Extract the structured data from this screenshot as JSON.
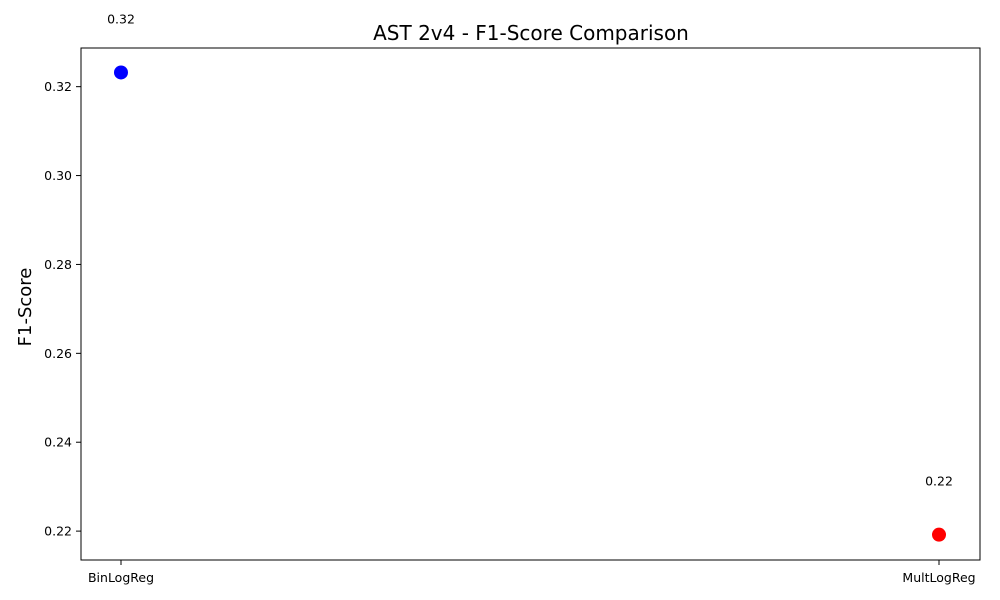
{
  "chart_data": {
    "type": "scatter",
    "title": "AST 2v4 - F1-Score Comparison",
    "xlabel": "",
    "ylabel": "F1-Score",
    "categories": [
      "BinLogReg",
      "MultLogReg"
    ],
    "points": [
      {
        "category": "BinLogReg",
        "value": 0.3232,
        "label": "0.32",
        "color": "#0000ff"
      },
      {
        "category": "MultLogReg",
        "value": 0.2192,
        "label": "0.22",
        "color": "#ff0000"
      }
    ],
    "yticks": [
      {
        "value": 0.22,
        "label": "0.22"
      },
      {
        "value": 0.24,
        "label": "0.24"
      },
      {
        "value": 0.26,
        "label": "0.26"
      },
      {
        "value": 0.28,
        "label": "0.28"
      },
      {
        "value": 0.3,
        "label": "0.30"
      },
      {
        "value": 0.32,
        "label": "0.32"
      }
    ],
    "ylim": [
      0.2135,
      0.3287
    ],
    "grid": false,
    "legend": "none"
  }
}
